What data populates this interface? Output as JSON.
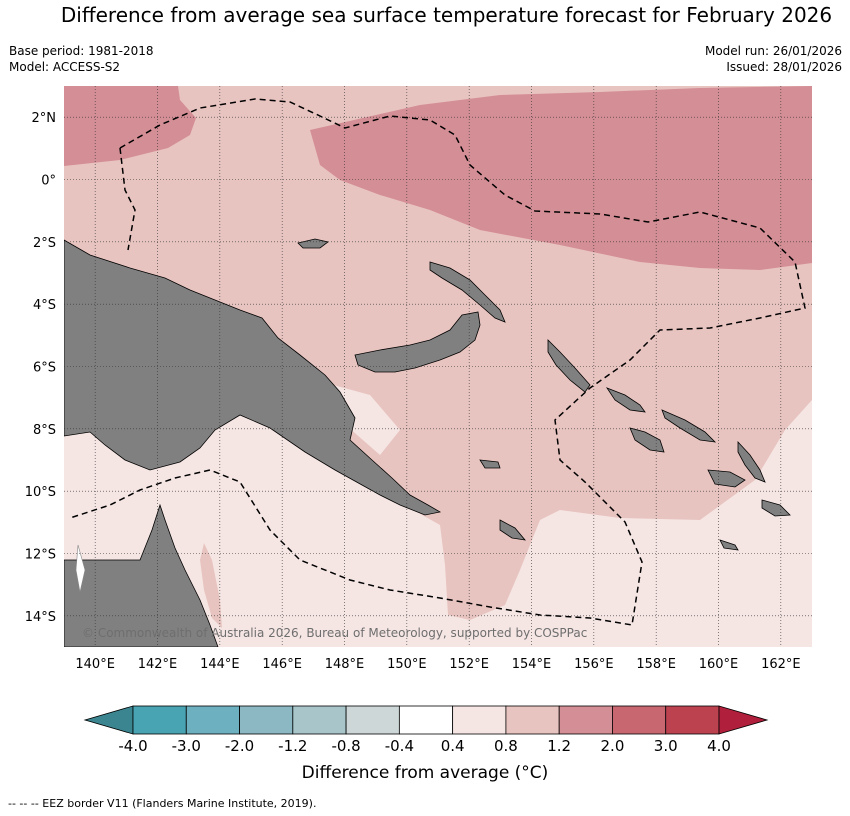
{
  "header": {
    "title": "Difference from average sea surface temperature forecast for February 2026",
    "base_period": "Base period: 1981-2018",
    "model": "Model: ACCESS-S2",
    "model_run": "Model run: 26/01/2026",
    "issued": "Issued: 28/01/2026"
  },
  "map": {
    "lon_range": [
      139,
      163
    ],
    "lat_range": [
      -15,
      3
    ],
    "lon_ticks": [
      "140°E",
      "142°E",
      "144°E",
      "146°E",
      "148°E",
      "150°E",
      "152°E",
      "154°E",
      "156°E",
      "158°E",
      "160°E",
      "162°E"
    ],
    "lat_ticks": [
      "2°N",
      "0°",
      "2°S",
      "4°S",
      "6°S",
      "8°S",
      "10°S",
      "12°S",
      "14°S"
    ],
    "grid": true,
    "land_color": "#808080",
    "copyright": "© Commonwealth of Australia 2026, Bureau of Meteorology, supported by COSPPac"
  },
  "colorbar": {
    "title": "Difference from average ($^\\circ$C)",
    "title_display": "Difference from average (°C)",
    "labels": [
      "-4.0",
      "-3.0",
      "-2.0",
      "-1.2",
      "-0.8",
      "-0.4",
      "0.4",
      "0.8",
      "1.2",
      "2.0",
      "3.0",
      "4.0"
    ],
    "colors": [
      "#3b8590",
      "#48a3b3",
      "#6db0bf",
      "#8bb8c3",
      "#a8c6ca",
      "#cdd7d8",
      "#ffffff",
      "#f5e6e4",
      "#e8c4c0",
      "#d48e95",
      "#c96770",
      "#bd4250",
      "#b01f3b"
    ]
  },
  "legend": {
    "eez_note": "-- -- -- EEZ border V11 (Flanders Marine Institute, 2019)."
  }
}
